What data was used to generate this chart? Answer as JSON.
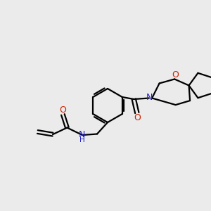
{
  "bg_color": "#ebebeb",
  "bond_color": "#000000",
  "N_color": "#2020cc",
  "O_color": "#cc2000",
  "fig_size": [
    3.0,
    3.0
  ],
  "dpi": 100,
  "xlim": [
    0,
    10
  ],
  "ylim": [
    0,
    10
  ]
}
